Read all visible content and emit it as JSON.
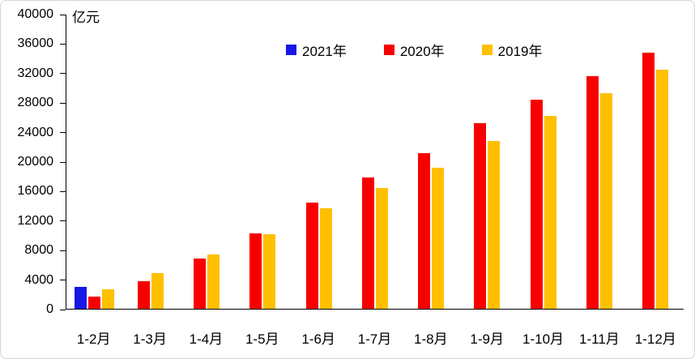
{
  "chart_data": {
    "type": "bar",
    "title": "",
    "unit": "亿元",
    "categories": [
      "1-2月",
      "1-3月",
      "1-4月",
      "1-5月",
      "1-6月",
      "1-7月",
      "1-8月",
      "1-9月",
      "1-10月",
      "1-11月",
      "1-12月"
    ],
    "series": [
      {
        "name": "2021年",
        "color": "#1717e8",
        "values": [
          3000,
          null,
          null,
          null,
          null,
          null,
          null,
          null,
          null,
          null,
          null
        ]
      },
      {
        "name": "2020年",
        "color": "#f80000",
        "values": [
          1700,
          3800,
          6800,
          10200,
          14400,
          17900,
          21200,
          25200,
          28400,
          31600,
          34800
        ]
      },
      {
        "name": "2019年",
        "color": "#ffc000",
        "values": [
          2700,
          4800,
          7400,
          10100,
          13700,
          16400,
          19200,
          22800,
          26200,
          29300,
          32500
        ]
      }
    ],
    "ylim": [
      0,
      40000
    ],
    "yticks": [
      0,
      4000,
      8000,
      12000,
      16000,
      20000,
      24000,
      28000,
      32000,
      36000,
      40000
    ],
    "legend_position": "top",
    "grid": false,
    "axis_color": "#000000",
    "background_color": "#ffffff"
  }
}
